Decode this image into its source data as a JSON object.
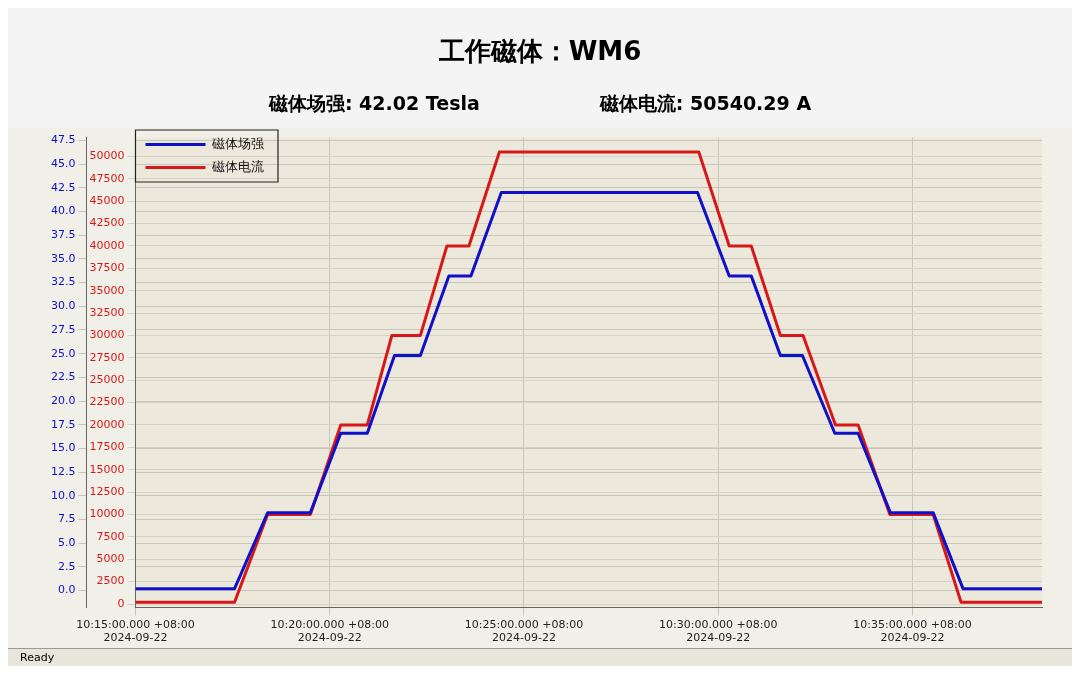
{
  "chart_data": {
    "type": "line",
    "title": "工作磁体：WM6",
    "annotations": [
      "磁体场强: 42.02 Tesla",
      "磁体电流: 50540.29 A",
      "Ready"
    ],
    "legend": "top left",
    "grid": true,
    "line_style": "solid",
    "xlim": [
      "2024-09-22T10:15:00",
      "2024-09-22T10:38:20"
    ],
    "xticks": [
      {
        "value": "2024-09-22T10:15:00",
        "label": "10:15:00.000 +08:00\n2024-09-22"
      },
      {
        "value": "2024-09-22T10:20:00",
        "label": "10:20:00.000 +08:00\n2024-09-22"
      },
      {
        "value": "2024-09-22T10:25:00",
        "label": "10:25:00.000 +08:00\n2024-09-22"
      },
      {
        "value": "2024-09-22T10:30:00",
        "label": "10:30:00.000 +08:00\n2024-09-22"
      },
      {
        "value": "2024-09-22T10:35:00",
        "label": "10:35:00.000 +08:00\n2024-09-22"
      }
    ],
    "ylim": [
      -1.8,
      47.8
    ],
    "yticks": [
      {
        "value": 0,
        "label": "0.0"
      },
      2.5,
      {
        "value": 5,
        "label": "5.0"
      },
      7.5,
      {
        "value": 10,
        "label": "10.0"
      },
      12.5,
      {
        "value": 15,
        "label": "15.0"
      },
      17.5,
      {
        "value": 20,
        "label": "20.0"
      },
      22.5,
      {
        "value": 25,
        "label": "25.0"
      },
      27.5,
      {
        "value": 30,
        "label": "30.0"
      },
      32.5,
      {
        "value": 35,
        "label": "35.0"
      },
      37.5,
      {
        "value": 40,
        "label": "40.0"
      },
      42.5,
      {
        "value": 45,
        "label": "45.0"
      },
      47.5
    ],
    "y2lim": [
      -400,
      52100
    ],
    "y2ticks": [
      0,
      2500,
      5000,
      7500,
      10000,
      12500,
      15000,
      17500,
      20000,
      22500,
      25000,
      27500,
      30000,
      32500,
      35000,
      37500,
      40000,
      42500,
      45000,
      47500,
      50000
    ],
    "series": [
      {
        "name": "磁体场强",
        "color": "#1010c8",
        "x": [
          "2024-09-22T10:15:00",
          "2024-09-22T10:17:33",
          "2024-09-22T10:18:24",
          "2024-09-22T10:19:30",
          "2024-09-22T10:20:17",
          "2024-09-22T10:20:58",
          "2024-09-22T10:21:40",
          "2024-09-22T10:22:20",
          "2024-09-22T10:23:04",
          "2024-09-22T10:23:38",
          "2024-09-22T10:24:25",
          "2024-09-22T10:29:28",
          "2024-09-22T10:30:17",
          "2024-09-22T10:30:51",
          "2024-09-22T10:31:36",
          "2024-09-22T10:32:10",
          "2024-09-22T10:33:00",
          "2024-09-22T10:33:36",
          "2024-09-22T10:34:26",
          "2024-09-22T10:35:32",
          "2024-09-22T10:36:18",
          "2024-09-22T10:38:20"
        ],
        "values": [
          0.2,
          0.2,
          8.2,
          8.2,
          16.6,
          16.6,
          24.8,
          24.8,
          33.2,
          33.2,
          42.0,
          42.0,
          33.2,
          33.2,
          24.8,
          24.8,
          16.6,
          16.6,
          8.2,
          8.2,
          0.2,
          0.2
        ]
      },
      {
        "name": "磁体电流",
        "color": "#d81818",
        "axis": "y2",
        "x": [
          "2024-09-22T10:15:00",
          "2024-09-22T10:17:33",
          "2024-09-22T10:18:24",
          "2024-09-22T10:19:30",
          "2024-09-22T10:20:17",
          "2024-09-22T10:20:58",
          "2024-09-22T10:21:36",
          "2024-09-22T10:22:20",
          "2024-09-22T10:23:01",
          "2024-09-22T10:23:35",
          "2024-09-22T10:24:22",
          "2024-09-22T10:29:30",
          "2024-09-22T10:30:17",
          "2024-09-22T10:30:51",
          "2024-09-22T10:31:36",
          "2024-09-22T10:32:11",
          "2024-09-22T10:33:01",
          "2024-09-22T10:33:36",
          "2024-09-22T10:34:25",
          "2024-09-22T10:35:32",
          "2024-09-22T10:36:15",
          "2024-09-22T10:38:20"
        ],
        "values": [
          200,
          200,
          10000,
          10000,
          20000,
          20000,
          30000,
          30000,
          40000,
          40000,
          50500,
          50500,
          40000,
          40000,
          30000,
          30000,
          20000,
          20000,
          10000,
          10000,
          200,
          200
        ]
      }
    ]
  }
}
